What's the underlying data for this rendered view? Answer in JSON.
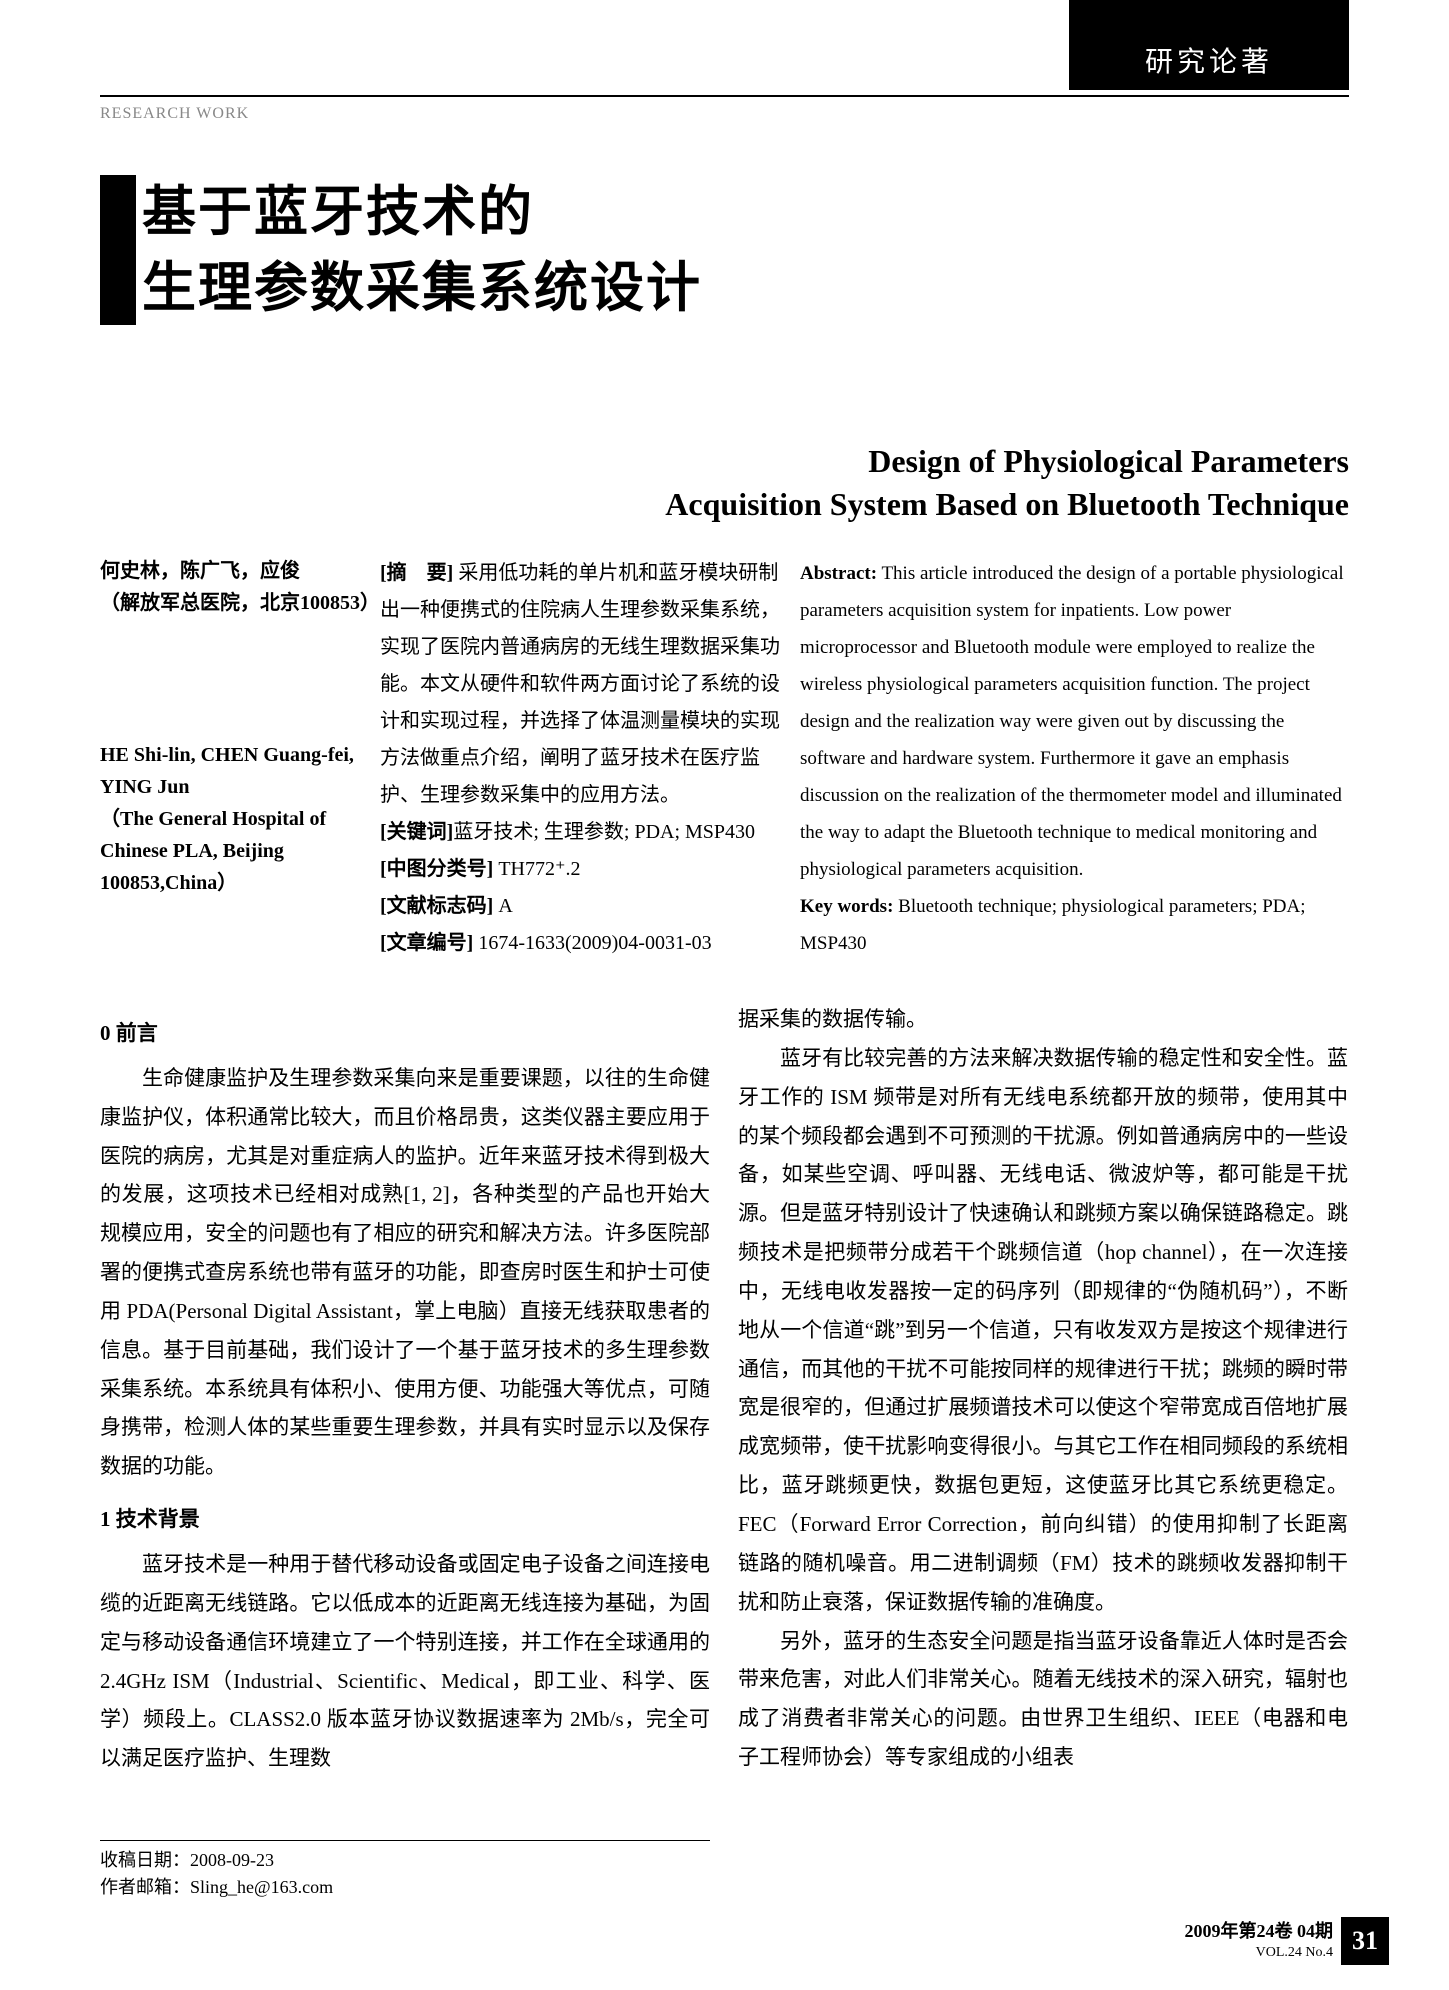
{
  "header": {
    "category_label": "研究论著",
    "section_label": "RESEARCH WORK"
  },
  "title": {
    "chinese_line1": "基于蓝牙技术的",
    "chinese_line2": "生理参数采集系统设计",
    "english_line1": "Design of Physiological Parameters",
    "english_line2": "Acquisition System Based on Bluetooth Technique"
  },
  "authors": {
    "cn_names": "何史林，陈广飞，应俊",
    "cn_affiliation": "（解放军总医院，北京100853）",
    "en_names": "HE Shi-lin, CHEN Guang-fei, YING Jun",
    "en_affiliation": "（The General Hospital of Chinese PLA, Beijing 100853,China）"
  },
  "abstract_cn": {
    "label": "[摘　要]",
    "text": " 采用低功耗的单片机和蓝牙模块研制出一种便携式的住院病人生理参数采集系统，实现了医院内普通病房的无线生理数据采集功能。本文从硬件和软件两方面讨论了系统的设计和实现过程，并选择了体温测量模块的实现方法做重点介绍，阐明了蓝牙技术在医疗监护、生理参数采集中的应用方法。",
    "keywords_label": "[关键词]",
    "keywords": "蓝牙技术; 生理参数; PDA; MSP430",
    "clc_label": "[中图分类号]",
    "clc": " TH772⁺.2",
    "doc_code_label": "[文献标志码]",
    "doc_code": " A",
    "article_id_label": "[文章编号]",
    "article_id": " 1674-1633(2009)04-0031-03"
  },
  "abstract_en": {
    "label": "Abstract:",
    "text": " This article introduced the design of a portable physiological parameters acquisition system for inpatients. Low power microprocessor and Bluetooth module were employed to realize the wireless physiological parameters acquisition function. The project design and the realization way were given out by discussing the software and hardware system. Furthermore it gave an emphasis discussion on the realization of the thermometer model and illuminated the way to adapt the Bluetooth technique to medical monitoring and physiological parameters acquisition.",
    "keywords_label": "Key words:",
    "keywords": " Bluetooth technique; physiological parameters; PDA; MSP430"
  },
  "body": {
    "h0": "0 前言",
    "p0": "生命健康监护及生理参数采集向来是重要课题，以往的生命健康监护仪，体积通常比较大，而且价格昂贵，这类仪器主要应用于医院的病房，尤其是对重症病人的监护。近年来蓝牙技术得到极大的发展，这项技术已经相对成熟[1, 2]，各种类型的产品也开始大规模应用，安全的问题也有了相应的研究和解决方法。许多医院部署的便携式查房系统也带有蓝牙的功能，即查房时医生和护士可使用 PDA(Personal Digital Assistant，掌上电脑）直接无线获取患者的信息。基于目前基础，我们设计了一个基于蓝牙技术的多生理参数采集系统。本系统具有体积小、使用方便、功能强大等优点，可随身携带，检测人体的某些重要生理参数，并具有实时显示以及保存数据的功能。",
    "h1": "1 技术背景",
    "p1": "蓝牙技术是一种用于替代移动设备或固定电子设备之间连接电缆的近距离无线链路。它以低成本的近距离无线连接为基础，为固定与移动设备通信环境建立了一个特别连接，并工作在全球通用的 2.4GHz ISM（Industrial、Scientific、Medical，即工业、科学、医学）频段上。CLASS2.0 版本蓝牙协议数据速率为 2Mb/s，完全可以满足医疗监护、生理数",
    "p1b": "据采集的数据传输。",
    "p2": "蓝牙有比较完善的方法来解决数据传输的稳定性和安全性。蓝牙工作的 ISM 频带是对所有无线电系统都开放的频带，使用其中的某个频段都会遇到不可预测的干扰源。例如普通病房中的一些设备，如某些空调、呼叫器、无线电话、微波炉等，都可能是干扰源。但是蓝牙特别设计了快速确认和跳频方案以确保链路稳定。跳频技术是把频带分成若干个跳频信道（hop channel），在一次连接中，无线电收发器按一定的码序列（即规律的“伪随机码”），不断地从一个信道“跳”到另一个信道，只有收发双方是按这个规律进行通信，而其他的干扰不可能按同样的规律进行干扰；跳频的瞬时带宽是很窄的，但通过扩展频谱技术可以使这个窄带宽成百倍地扩展成宽频带，使干扰影响变得很小。与其它工作在相同频段的系统相比，蓝牙跳频更快，数据包更短，这使蓝牙比其它系统更稳定。FEC（Forward Error Correction，前向纠错）的使用抑制了长距离链路的随机噪音。用二进制调频（FM）技术的跳频收发器抑制干扰和防止衰落，保证数据传输的准确度。",
    "p3": "另外，蓝牙的生态安全问题是指当蓝牙设备靠近人体时是否会带来危害，对此人们非常关心。随着无线技术的深入研究，辐射也成了消费者非常关心的问题。由世界卫生组织、IEEE（电器和电子工程师协会）等专家组成的小组表"
  },
  "footnote": {
    "received": "收稿日期：2008-09-23",
    "email": "作者邮箱：Sling_he@163.com"
  },
  "footer": {
    "line1": "2009年第24卷 04期",
    "line2": "VOL.24 No.4",
    "page": "31"
  }
}
